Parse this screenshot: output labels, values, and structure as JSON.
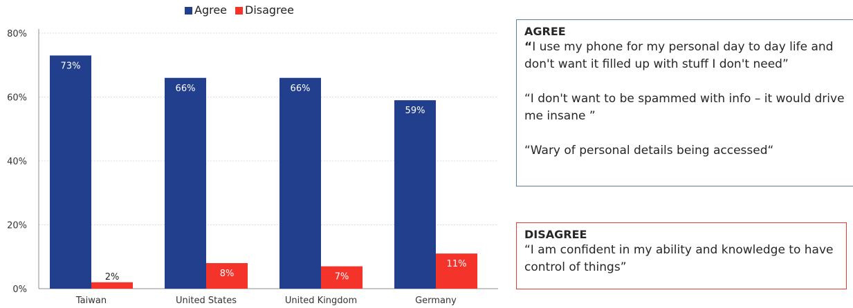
{
  "chart_data": {
    "type": "bar",
    "categories": [
      "Taiwan",
      "United States",
      "United Kingdom",
      "Germany"
    ],
    "series": [
      {
        "name": "Agree",
        "values": [
          73,
          66,
          66,
          59
        ],
        "color": "#213f8c",
        "labels": [
          "73%",
          "66%",
          "66%",
          "59%"
        ]
      },
      {
        "name": "Disagree",
        "values": [
          2,
          8,
          7,
          11
        ],
        "color": "#f4332a",
        "labels": [
          "2%",
          "8%",
          "7%",
          "11%"
        ]
      }
    ],
    "ylim": [
      0,
      80
    ],
    "yticks": [
      0,
      20,
      40,
      60,
      80
    ],
    "ytick_labels": [
      "0%",
      "20%",
      "40%",
      "60%",
      "80%"
    ],
    "grid": true,
    "legend": "top-center"
  },
  "agree_box": {
    "title": "AGREE",
    "quote1_open": "“",
    "quote1_text": "I use my phone for my personal day to day life and don't want it filled up with stuff I don't need”",
    "quote2": "“I don't want to be spammed with info – it would drive me insane ”",
    "quote3": "“Wary of personal details being accessed“"
  },
  "disagree_box": {
    "title": "DISAGREE",
    "quote1": "“I am confident in my ability and knowledge to have control of things”"
  }
}
